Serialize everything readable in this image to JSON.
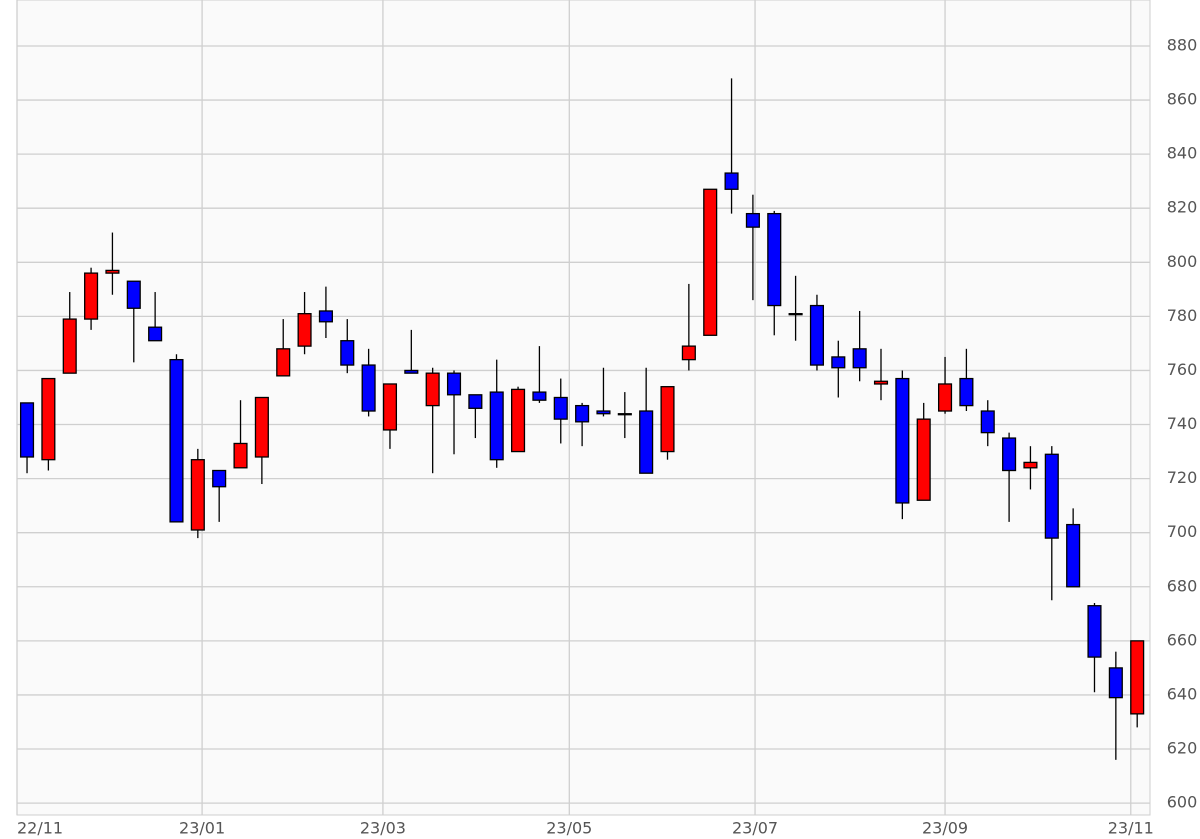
{
  "chart_data": {
    "type": "candlestick",
    "categories": [
      null,
      null,
      null,
      null,
      null,
      null,
      null,
      null,
      null,
      null,
      null,
      null,
      null,
      null,
      null,
      null,
      null,
      null,
      null,
      null,
      null,
      null,
      null,
      null,
      null,
      null,
      null,
      null,
      null,
      null,
      null,
      null,
      null,
      null,
      null,
      null,
      null,
      null,
      null,
      null,
      null,
      null,
      null,
      null,
      null,
      null,
      null,
      null,
      null,
      null,
      null,
      null,
      null
    ],
    "open": [
      748,
      727,
      759,
      779,
      796,
      793,
      776,
      764,
      701,
      723,
      724,
      728,
      758,
      769,
      782,
      771,
      762,
      738,
      760,
      747,
      759,
      751,
      752,
      730,
      752,
      750,
      747,
      745,
      744,
      745,
      730,
      764,
      773,
      833,
      818,
      818,
      781,
      784,
      765,
      768,
      755,
      757,
      712,
      745,
      757,
      745,
      735,
      724,
      729,
      703,
      673,
      650,
      633
    ],
    "high": [
      748,
      757,
      789,
      798,
      811,
      793,
      789,
      766,
      731,
      723,
      749,
      750,
      779,
      789,
      791,
      779,
      768,
      755,
      775,
      761,
      760,
      751,
      764,
      754,
      769,
      757,
      748,
      761,
      752,
      761,
      754,
      792,
      827,
      868,
      825,
      819,
      795,
      788,
      771,
      782,
      768,
      760,
      748,
      765,
      768,
      749,
      737,
      732,
      732,
      709,
      674,
      656,
      660
    ],
    "low": [
      722,
      723,
      759,
      775,
      788,
      763,
      771,
      704,
      698,
      704,
      724,
      718,
      758,
      766,
      772,
      759,
      743,
      731,
      759,
      722,
      729,
      735,
      724,
      730,
      748,
      733,
      732,
      743,
      735,
      722,
      727,
      760,
      773,
      818,
      786,
      773,
      771,
      760,
      750,
      756,
      749,
      705,
      712,
      744,
      745,
      732,
      704,
      716,
      675,
      680,
      641,
      616,
      628
    ],
    "close": [
      728,
      757,
      779,
      796,
      797,
      783,
      771,
      704,
      727,
      717,
      733,
      750,
      768,
      781,
      778,
      762,
      745,
      755,
      759,
      759,
      751,
      746,
      727,
      753,
      749,
      742,
      741,
      744,
      744,
      722,
      754,
      769,
      827,
      827,
      813,
      784,
      781,
      762,
      761,
      761,
      756,
      711,
      742,
      755,
      747,
      737,
      723,
      726,
      698,
      680,
      654,
      639,
      660
    ],
    "up_color": "#ff0000",
    "down_color": "#0000ff",
    "xlim": [
      -0.47,
      52.6
    ],
    "xticks": [
      {
        "value": -0.47,
        "label": "22/11"
      },
      {
        "value": 8.2,
        "label": "23/01"
      },
      {
        "value": 16.67,
        "label": "23/03"
      },
      {
        "value": 25.4,
        "label": "23/05"
      },
      {
        "value": 34.1,
        "label": "23/07"
      },
      {
        "value": 43.0,
        "label": "23/09"
      },
      {
        "value": 51.7,
        "label": "23/11"
      }
    ],
    "ylim": [
      595.6,
      897
    ],
    "yticks": [
      600,
      620,
      640,
      660,
      680,
      700,
      720,
      740,
      760,
      780,
      800,
      820,
      840,
      860,
      880
    ],
    "grid": true
  }
}
